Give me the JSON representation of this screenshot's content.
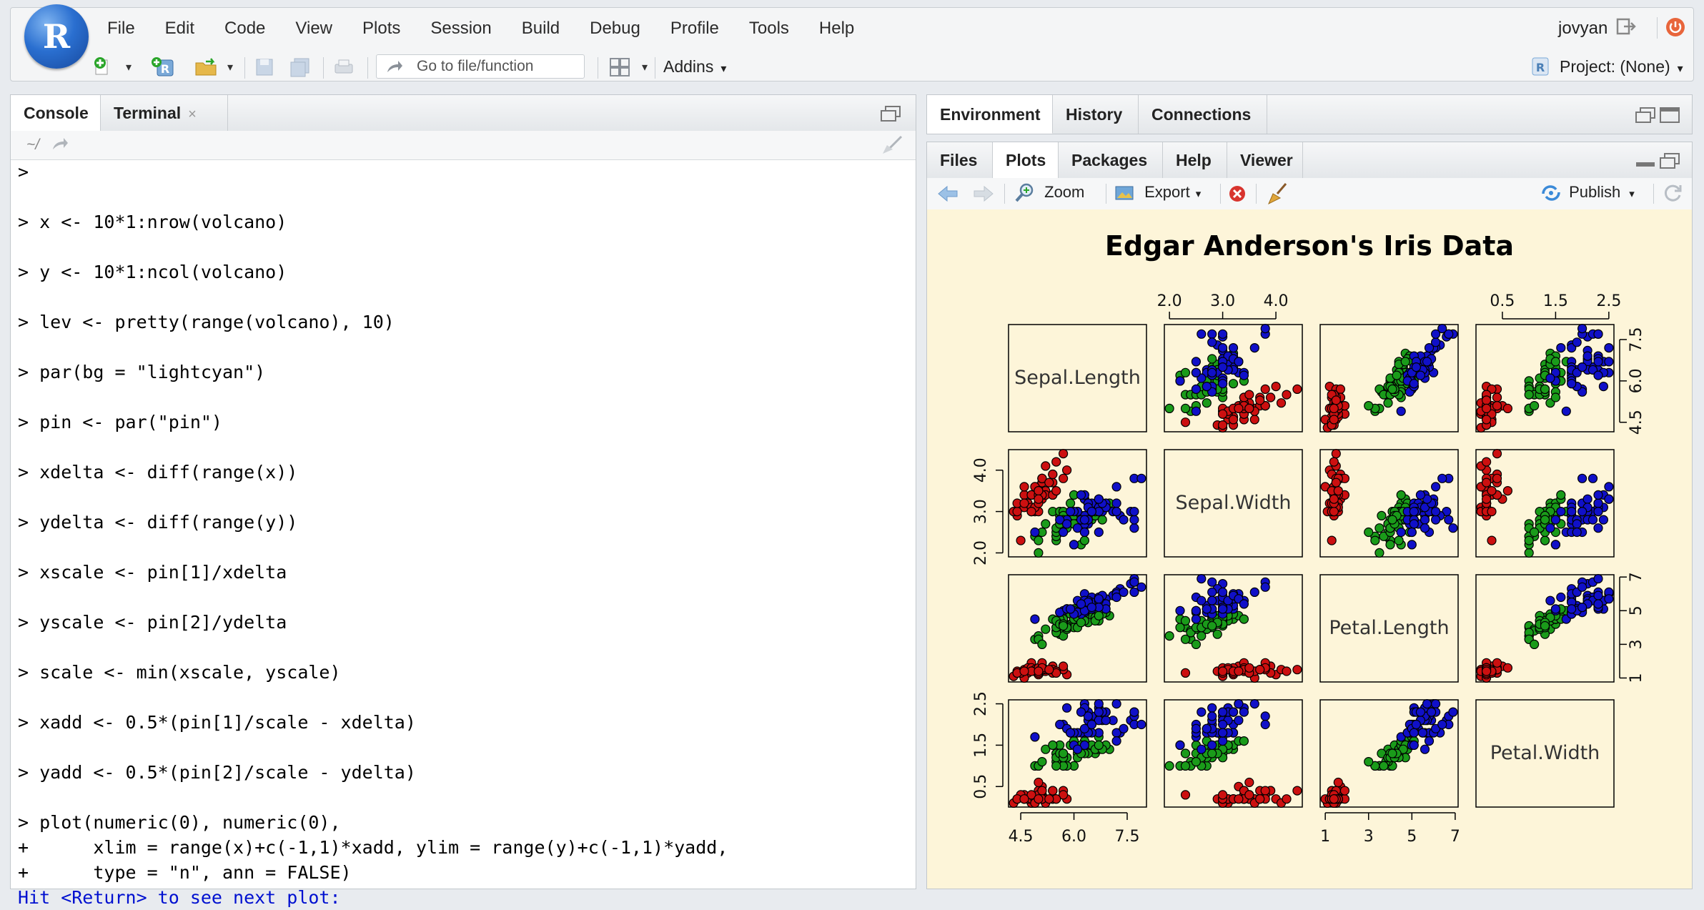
{
  "app": {
    "logo_letter": "R"
  },
  "menu": [
    "File",
    "Edit",
    "Code",
    "View",
    "Plots",
    "Session",
    "Build",
    "Debug",
    "Profile",
    "Tools",
    "Help"
  ],
  "user": {
    "name": "jovyan"
  },
  "toolbar": {
    "goto_placeholder": "Go to file/function",
    "addins_label": "Addins",
    "project_label": "Project: (None)"
  },
  "left_pane": {
    "tabs": [
      "Console",
      "Terminal"
    ],
    "path": "~/",
    "console_lines": [
      {
        "t": ">",
        "gap": false
      },
      {
        "t": "> x <- 10*1:nrow(volcano)",
        "gap": true
      },
      {
        "t": "> y <- 10*1:ncol(volcano)",
        "gap": true
      },
      {
        "t": "> lev <- pretty(range(volcano), 10)",
        "gap": true
      },
      {
        "t": "> par(bg = \"lightcyan\")",
        "gap": true
      },
      {
        "t": "> pin <- par(\"pin\")",
        "gap": true
      },
      {
        "t": "> xdelta <- diff(range(x))",
        "gap": true
      },
      {
        "t": "> ydelta <- diff(range(y))",
        "gap": true
      },
      {
        "t": "> xscale <- pin[1]/xdelta",
        "gap": true
      },
      {
        "t": "> yscale <- pin[2]/ydelta",
        "gap": true
      },
      {
        "t": "> scale <- min(xscale, yscale)",
        "gap": true
      },
      {
        "t": "> xadd <- 0.5*(pin[1]/scale - xdelta)",
        "gap": true
      },
      {
        "t": "> yadd <- 0.5*(pin[2]/scale - ydelta)",
        "gap": true
      },
      {
        "t": "> plot(numeric(0), numeric(0),",
        "gap": true
      },
      {
        "t": "+      xlim = range(x)+c(-1,1)*xadd, ylim = range(y)+c(-1,1)*yadd,",
        "gap": false
      },
      {
        "t": "+      type = \"n\", ann = FALSE)",
        "gap": false
      }
    ],
    "hit_return": "Hit <Return> to see next plot:"
  },
  "env_pane": {
    "tabs": [
      "Environment",
      "History",
      "Connections"
    ]
  },
  "files_pane": {
    "tabs": [
      "Files",
      "Plots",
      "Packages",
      "Help",
      "Viewer"
    ],
    "zoom_label": "Zoom",
    "export_label": "Export",
    "publish_label": "Publish"
  },
  "chart_data": {
    "type": "scatter",
    "title": "Edgar Anderson's Iris Data",
    "variables": [
      "Sepal.Length",
      "Sepal.Width",
      "Petal.Length",
      "Petal.Width"
    ],
    "tick_labels": {
      "Sepal.Length": [
        "4.5",
        "6.0",
        "7.5"
      ],
      "Sepal.Width": [
        "2.0",
        "3.0",
        "4.0"
      ],
      "Petal.Length": [
        "1",
        "3",
        "5",
        "7"
      ],
      "Petal.Width": [
        "0.5",
        "1.5",
        "2.5"
      ]
    },
    "ticks": {
      "Sepal.Length": [
        4.5,
        6.0,
        7.5
      ],
      "Sepal.Width": [
        2.0,
        3.0,
        4.0
      ],
      "Petal.Length": [
        1,
        3,
        5,
        7
      ],
      "Petal.Width": [
        0.5,
        1.5,
        2.5
      ]
    },
    "ranges": {
      "Sepal.Length": [
        4.3,
        7.9
      ],
      "Sepal.Width": [
        2.0,
        4.4
      ],
      "Petal.Length": [
        1.0,
        6.9
      ],
      "Petal.Width": [
        0.1,
        2.5
      ]
    },
    "colors": {
      "setosa": "#cc1010",
      "versicolor": "#1a9b1a",
      "virginica": "#1010c8"
    },
    "background": "#fdf5d9",
    "series": [
      {
        "group": "setosa",
        "points": [
          [
            5.1,
            3.5,
            1.4,
            0.2
          ],
          [
            4.9,
            3.0,
            1.4,
            0.2
          ],
          [
            4.7,
            3.2,
            1.3,
            0.2
          ],
          [
            4.6,
            3.1,
            1.5,
            0.2
          ],
          [
            5.0,
            3.6,
            1.4,
            0.2
          ],
          [
            5.4,
            3.9,
            1.7,
            0.4
          ],
          [
            4.6,
            3.4,
            1.4,
            0.3
          ],
          [
            5.0,
            3.4,
            1.5,
            0.2
          ],
          [
            4.4,
            2.9,
            1.4,
            0.2
          ],
          [
            4.9,
            3.1,
            1.5,
            0.1
          ],
          [
            5.4,
            3.7,
            1.5,
            0.2
          ],
          [
            4.8,
            3.4,
            1.6,
            0.2
          ],
          [
            4.8,
            3.0,
            1.4,
            0.1
          ],
          [
            4.3,
            3.0,
            1.1,
            0.1
          ],
          [
            5.8,
            4.0,
            1.2,
            0.2
          ],
          [
            5.7,
            4.4,
            1.5,
            0.4
          ],
          [
            5.4,
            3.9,
            1.3,
            0.4
          ],
          [
            5.1,
            3.5,
            1.4,
            0.3
          ],
          [
            5.7,
            3.8,
            1.7,
            0.3
          ],
          [
            5.1,
            3.8,
            1.5,
            0.3
          ],
          [
            5.4,
            3.4,
            1.7,
            0.2
          ],
          [
            5.1,
            3.7,
            1.5,
            0.4
          ],
          [
            4.6,
            3.6,
            1.0,
            0.2
          ],
          [
            5.1,
            3.3,
            1.7,
            0.5
          ],
          [
            4.8,
            3.4,
            1.9,
            0.2
          ],
          [
            5.0,
            3.0,
            1.6,
            0.2
          ],
          [
            5.0,
            3.4,
            1.6,
            0.4
          ],
          [
            5.2,
            3.5,
            1.5,
            0.2
          ],
          [
            5.2,
            3.4,
            1.4,
            0.2
          ],
          [
            4.7,
            3.2,
            1.6,
            0.2
          ],
          [
            4.8,
            3.1,
            1.6,
            0.2
          ],
          [
            5.4,
            3.4,
            1.5,
            0.4
          ],
          [
            5.2,
            4.1,
            1.5,
            0.1
          ],
          [
            5.5,
            4.2,
            1.4,
            0.2
          ],
          [
            4.9,
            3.1,
            1.5,
            0.2
          ],
          [
            5.0,
            3.2,
            1.2,
            0.2
          ],
          [
            5.5,
            3.5,
            1.3,
            0.2
          ],
          [
            4.9,
            3.6,
            1.4,
            0.1
          ],
          [
            4.4,
            3.0,
            1.3,
            0.2
          ],
          [
            5.1,
            3.4,
            1.5,
            0.2
          ],
          [
            5.0,
            3.5,
            1.3,
            0.3
          ],
          [
            4.5,
            2.3,
            1.3,
            0.3
          ],
          [
            4.4,
            3.2,
            1.3,
            0.2
          ],
          [
            5.0,
            3.5,
            1.6,
            0.6
          ],
          [
            5.1,
            3.8,
            1.9,
            0.4
          ],
          [
            4.8,
            3.0,
            1.4,
            0.3
          ],
          [
            5.1,
            3.8,
            1.6,
            0.2
          ],
          [
            4.6,
            3.2,
            1.4,
            0.2
          ],
          [
            5.3,
            3.7,
            1.5,
            0.2
          ],
          [
            5.0,
            3.3,
            1.4,
            0.2
          ]
        ]
      },
      {
        "group": "versicolor",
        "points": [
          [
            7.0,
            3.2,
            4.7,
            1.4
          ],
          [
            6.4,
            3.2,
            4.5,
            1.5
          ],
          [
            6.9,
            3.1,
            4.9,
            1.5
          ],
          [
            5.5,
            2.3,
            4.0,
            1.3
          ],
          [
            6.5,
            2.8,
            4.6,
            1.5
          ],
          [
            5.7,
            2.8,
            4.5,
            1.3
          ],
          [
            6.3,
            3.3,
            4.7,
            1.6
          ],
          [
            4.9,
            2.4,
            3.3,
            1.0
          ],
          [
            6.6,
            2.9,
            4.6,
            1.3
          ],
          [
            5.2,
            2.7,
            3.9,
            1.4
          ],
          [
            5.0,
            2.0,
            3.5,
            1.0
          ],
          [
            5.9,
            3.0,
            4.2,
            1.5
          ],
          [
            6.0,
            2.2,
            4.0,
            1.0
          ],
          [
            6.1,
            2.9,
            4.7,
            1.4
          ],
          [
            5.6,
            2.9,
            3.6,
            1.3
          ],
          [
            6.7,
            3.1,
            4.4,
            1.4
          ],
          [
            5.6,
            3.0,
            4.5,
            1.5
          ],
          [
            5.8,
            2.7,
            4.1,
            1.0
          ],
          [
            6.2,
            2.2,
            4.5,
            1.5
          ],
          [
            5.6,
            2.5,
            3.9,
            1.1
          ],
          [
            5.9,
            3.2,
            4.8,
            1.8
          ],
          [
            6.1,
            2.8,
            4.0,
            1.3
          ],
          [
            6.3,
            2.5,
            4.9,
            1.5
          ],
          [
            6.1,
            2.8,
            4.7,
            1.2
          ],
          [
            6.4,
            2.9,
            4.3,
            1.3
          ],
          [
            6.6,
            3.0,
            4.4,
            1.4
          ],
          [
            6.8,
            2.8,
            4.8,
            1.4
          ],
          [
            6.7,
            3.0,
            5.0,
            1.7
          ],
          [
            6.0,
            2.9,
            4.5,
            1.5
          ],
          [
            5.7,
            2.6,
            3.5,
            1.0
          ],
          [
            5.5,
            2.4,
            3.8,
            1.1
          ],
          [
            5.5,
            2.4,
            3.7,
            1.0
          ],
          [
            5.8,
            2.7,
            3.9,
            1.2
          ],
          [
            6.0,
            2.7,
            5.1,
            1.6
          ],
          [
            5.4,
            3.0,
            4.5,
            1.5
          ],
          [
            6.0,
            3.4,
            4.5,
            1.6
          ],
          [
            6.7,
            3.1,
            4.7,
            1.5
          ],
          [
            6.3,
            2.3,
            4.4,
            1.3
          ],
          [
            5.6,
            3.0,
            4.1,
            1.3
          ],
          [
            5.5,
            2.5,
            4.0,
            1.3
          ],
          [
            5.5,
            2.6,
            4.4,
            1.2
          ],
          [
            6.1,
            3.0,
            4.6,
            1.4
          ],
          [
            5.8,
            2.6,
            4.0,
            1.2
          ],
          [
            5.0,
            2.3,
            3.3,
            1.0
          ],
          [
            5.6,
            2.7,
            4.2,
            1.3
          ],
          [
            5.7,
            3.0,
            4.2,
            1.2
          ],
          [
            5.7,
            2.9,
            4.2,
            1.3
          ],
          [
            6.2,
            2.9,
            4.3,
            1.3
          ],
          [
            5.1,
            2.5,
            3.0,
            1.1
          ],
          [
            5.7,
            2.8,
            4.1,
            1.3
          ]
        ]
      },
      {
        "group": "virginica",
        "points": [
          [
            6.3,
            3.3,
            6.0,
            2.5
          ],
          [
            5.8,
            2.7,
            5.1,
            1.9
          ],
          [
            7.1,
            3.0,
            5.9,
            2.1
          ],
          [
            6.3,
            2.9,
            5.6,
            1.8
          ],
          [
            6.5,
            3.0,
            5.8,
            2.2
          ],
          [
            7.6,
            3.0,
            6.6,
            2.1
          ],
          [
            4.9,
            2.5,
            4.5,
            1.7
          ],
          [
            7.3,
            2.9,
            6.3,
            1.8
          ],
          [
            6.7,
            2.5,
            5.8,
            1.8
          ],
          [
            7.2,
            3.6,
            6.1,
            2.5
          ],
          [
            6.5,
            3.2,
            5.1,
            2.0
          ],
          [
            6.4,
            2.7,
            5.3,
            1.9
          ],
          [
            6.8,
            3.0,
            5.5,
            2.1
          ],
          [
            5.7,
            2.5,
            5.0,
            2.0
          ],
          [
            5.8,
            2.8,
            5.1,
            2.4
          ],
          [
            6.4,
            3.2,
            5.3,
            2.3
          ],
          [
            6.5,
            3.0,
            5.5,
            1.8
          ],
          [
            7.7,
            3.8,
            6.7,
            2.2
          ],
          [
            7.7,
            2.6,
            6.9,
            2.3
          ],
          [
            6.0,
            2.2,
            5.0,
            1.5
          ],
          [
            6.9,
            3.2,
            5.7,
            2.3
          ],
          [
            5.6,
            2.8,
            4.9,
            2.0
          ],
          [
            7.7,
            2.8,
            6.7,
            2.0
          ],
          [
            6.3,
            2.7,
            4.9,
            1.8
          ],
          [
            6.7,
            3.3,
            5.7,
            2.1
          ],
          [
            7.2,
            3.2,
            6.0,
            1.8
          ],
          [
            6.2,
            2.8,
            4.8,
            1.8
          ],
          [
            6.1,
            3.0,
            4.9,
            1.8
          ],
          [
            6.4,
            2.8,
            5.6,
            2.1
          ],
          [
            7.2,
            3.0,
            5.8,
            1.6
          ],
          [
            7.4,
            2.8,
            6.1,
            1.9
          ],
          [
            7.9,
            3.8,
            6.4,
            2.0
          ],
          [
            6.4,
            2.8,
            5.6,
            2.2
          ],
          [
            6.3,
            2.8,
            5.1,
            1.5
          ],
          [
            6.1,
            2.6,
            5.6,
            1.4
          ],
          [
            7.7,
            3.0,
            6.1,
            2.3
          ],
          [
            6.3,
            3.4,
            5.6,
            2.4
          ],
          [
            6.4,
            3.1,
            5.5,
            1.8
          ],
          [
            6.0,
            3.0,
            4.8,
            1.8
          ],
          [
            6.9,
            3.1,
            5.4,
            2.1
          ],
          [
            6.7,
            3.1,
            5.6,
            2.4
          ],
          [
            6.9,
            3.1,
            5.1,
            2.3
          ],
          [
            5.8,
            2.7,
            5.1,
            1.9
          ],
          [
            6.8,
            3.2,
            5.9,
            2.3
          ],
          [
            6.7,
            3.3,
            5.7,
            2.5
          ],
          [
            6.7,
            3.0,
            5.2,
            2.3
          ],
          [
            6.3,
            2.5,
            5.0,
            1.9
          ],
          [
            6.5,
            3.0,
            5.2,
            2.0
          ],
          [
            6.2,
            3.4,
            5.4,
            2.3
          ],
          [
            5.9,
            3.0,
            5.1,
            1.8
          ]
        ]
      }
    ]
  }
}
